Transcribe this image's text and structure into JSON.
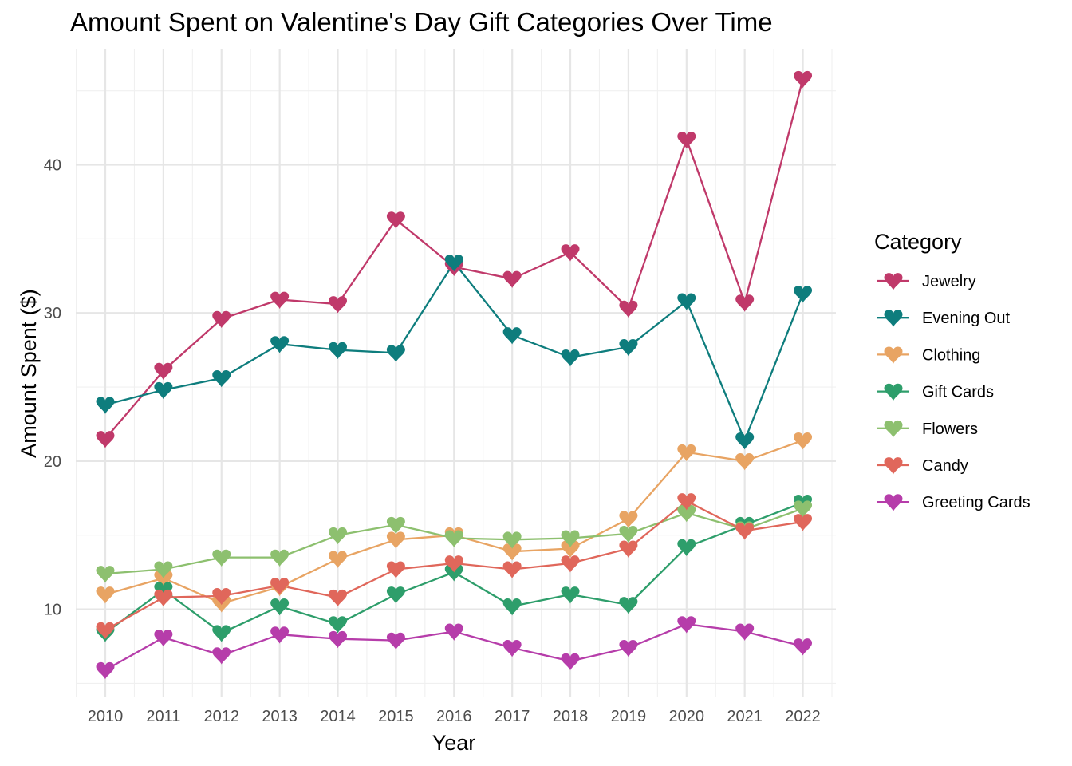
{
  "chart_data": {
    "type": "line",
    "title": "Amount Spent on Valentine's Day Gift Categories Over Time",
    "xlabel": "Year",
    "ylabel": "Amount Spent ($)",
    "x": [
      2010,
      2011,
      2012,
      2013,
      2014,
      2015,
      2016,
      2017,
      2018,
      2019,
      2020,
      2021,
      2022
    ],
    "x_tick_labels": [
      "2010",
      "2011",
      "2012",
      "2013",
      "2014",
      "2015",
      "2016",
      "2017",
      "2018",
      "2019",
      "2020",
      "2021",
      "2022"
    ],
    "y_ticks": [
      10,
      20,
      30,
      40
    ],
    "y_tick_labels": [
      "10",
      "20",
      "30",
      "40"
    ],
    "ylim": [
      5,
      47
    ],
    "grid": true,
    "marker": "heart",
    "legend": {
      "title": "Category",
      "position": "right"
    },
    "series": [
      {
        "name": "Jewelry",
        "color": "#C0396A",
        "values": [
          21.5,
          26.1,
          29.6,
          30.9,
          30.6,
          36.3,
          33.1,
          32.3,
          34.1,
          30.3,
          41.7,
          30.7,
          45.8
        ]
      },
      {
        "name": "Evening Out",
        "color": "#0E7D7D",
        "values": [
          23.8,
          24.8,
          25.6,
          27.9,
          27.5,
          27.3,
          33.4,
          28.5,
          27.0,
          27.7,
          30.8,
          21.4,
          31.3
        ]
      },
      {
        "name": "Clothing",
        "color": "#E8A463",
        "values": [
          11.0,
          12.1,
          10.4,
          11.5,
          13.4,
          14.7,
          15.0,
          13.9,
          14.1,
          16.1,
          20.6,
          20.0,
          21.4
        ]
      },
      {
        "name": "Gift Cards",
        "color": "#2E9E6B",
        "values": [
          8.4,
          11.3,
          8.4,
          10.2,
          9.0,
          11.0,
          12.5,
          10.2,
          11.0,
          10.3,
          14.2,
          15.7,
          17.2
        ]
      },
      {
        "name": "Flowers",
        "color": "#8DC06F",
        "values": [
          12.4,
          12.7,
          13.5,
          13.5,
          15.0,
          15.7,
          14.8,
          14.7,
          14.8,
          15.1,
          16.5,
          15.4,
          16.8
        ]
      },
      {
        "name": "Candy",
        "color": "#E0675B",
        "values": [
          8.6,
          10.8,
          10.9,
          11.6,
          10.8,
          12.7,
          13.1,
          12.7,
          13.1,
          14.1,
          17.3,
          15.3,
          15.9
        ]
      },
      {
        "name": "Greeting Cards",
        "color": "#B63DAA",
        "values": [
          5.9,
          8.1,
          6.9,
          8.3,
          8.0,
          7.9,
          8.5,
          7.4,
          6.5,
          7.4,
          9.0,
          8.5,
          7.5
        ]
      }
    ]
  }
}
